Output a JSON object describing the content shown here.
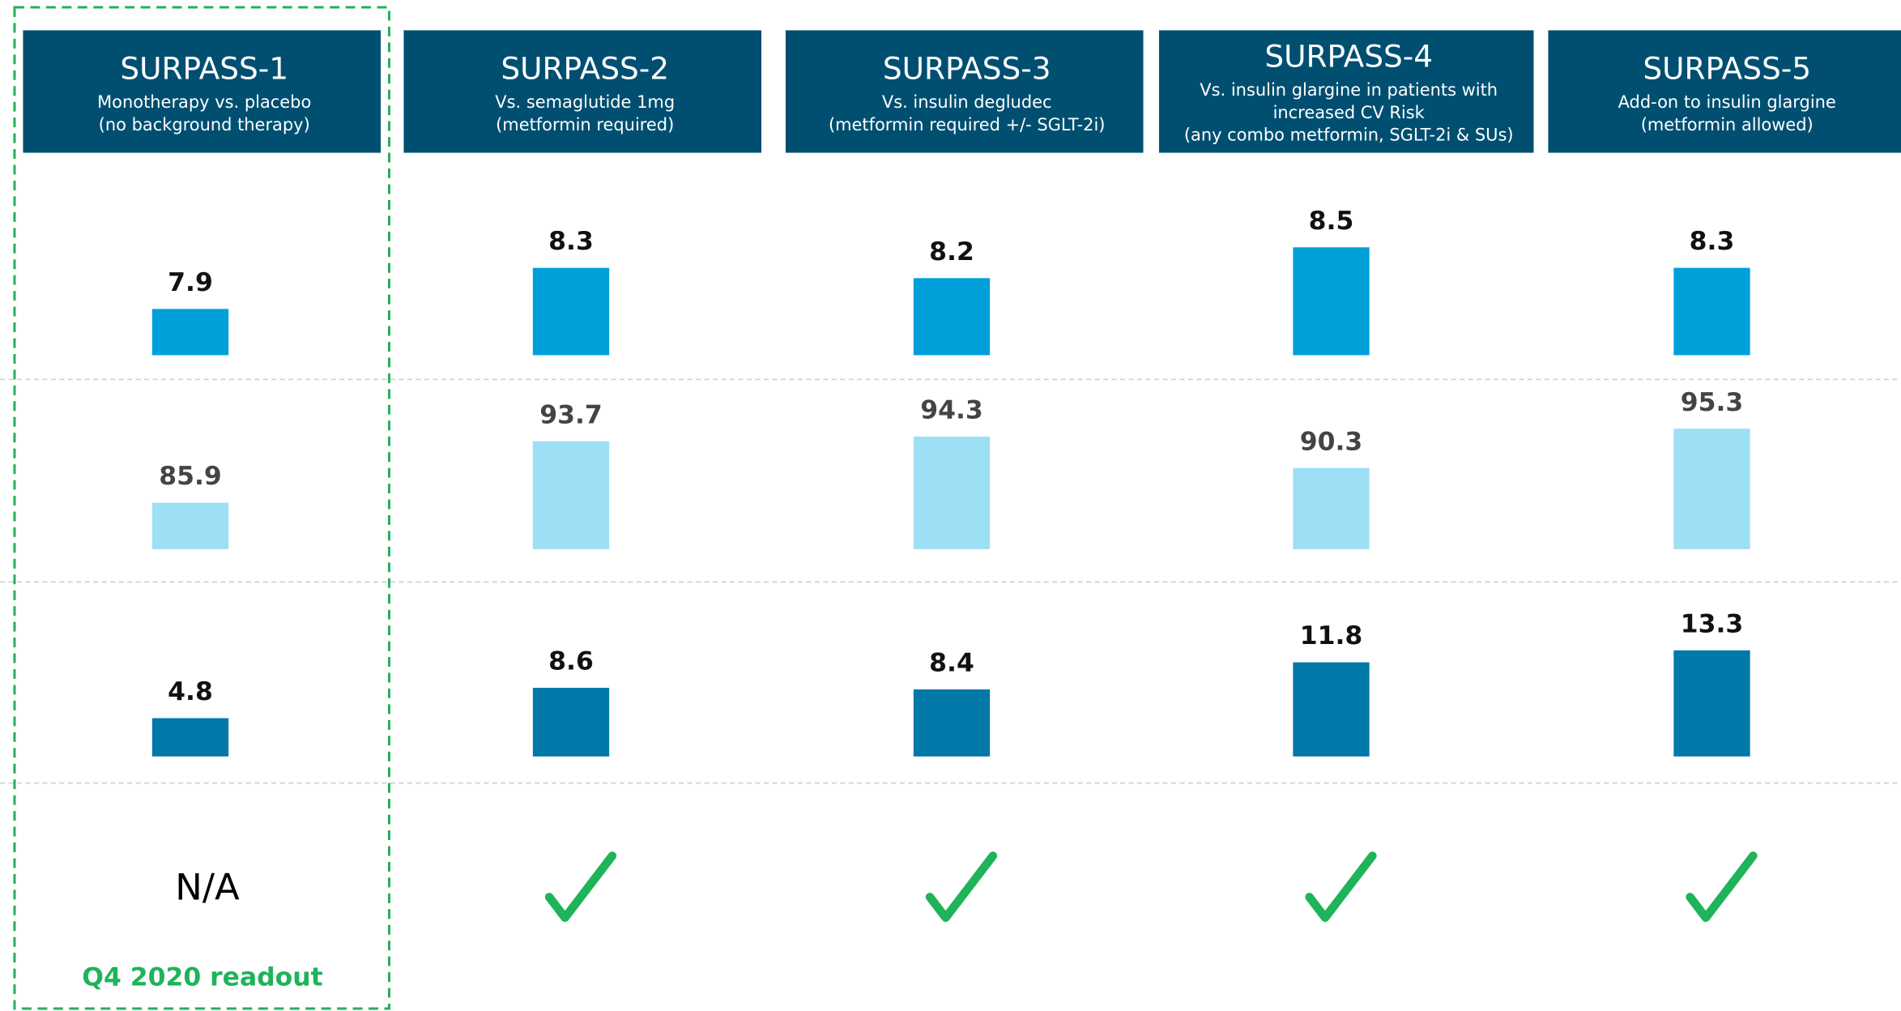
{
  "columns": [
    {
      "title": "SURPASS-1",
      "subtitle": [
        "Monotherapy vs. placebo",
        "(no background therapy)"
      ]
    },
    {
      "title": "SURPASS-2",
      "subtitle": [
        "Vs. semaglutide 1mg",
        "(metformin required)"
      ]
    },
    {
      "title": "SURPASS-3",
      "subtitle": [
        "Vs. insulin degludec",
        "(metformin required +/- SGLT-2i)"
      ]
    },
    {
      "title": "SURPASS-4",
      "subtitle": [
        "Vs. insulin glargine in patients with",
        "increased CV Risk",
        "(any combo metformin, SGLT-2i & SUs)"
      ]
    },
    {
      "title": "SURPASS-5",
      "subtitle": [
        "Add-on to insulin glargine",
        "(metformin allowed)"
      ]
    }
  ],
  "rows": [
    {
      "color": "#009fda",
      "values": [
        7.9,
        8.3,
        8.2,
        8.5,
        8.3
      ],
      "ylim": [
        7.45,
        8.63
      ]
    },
    {
      "color": "#9ddff5",
      "values": [
        85.9,
        93.7,
        94.3,
        90.3,
        95.3
      ],
      "ylim": [
        80,
        95.4
      ]
    },
    {
      "color": "#0078a8",
      "values": [
        4.8,
        8.6,
        8.4,
        11.8,
        13.3
      ],
      "ylim": [
        0,
        15.2
      ]
    }
  ],
  "status": [
    "N/A",
    null,
    null,
    null,
    null
  ],
  "footer": "Q4 2020 readout"
}
